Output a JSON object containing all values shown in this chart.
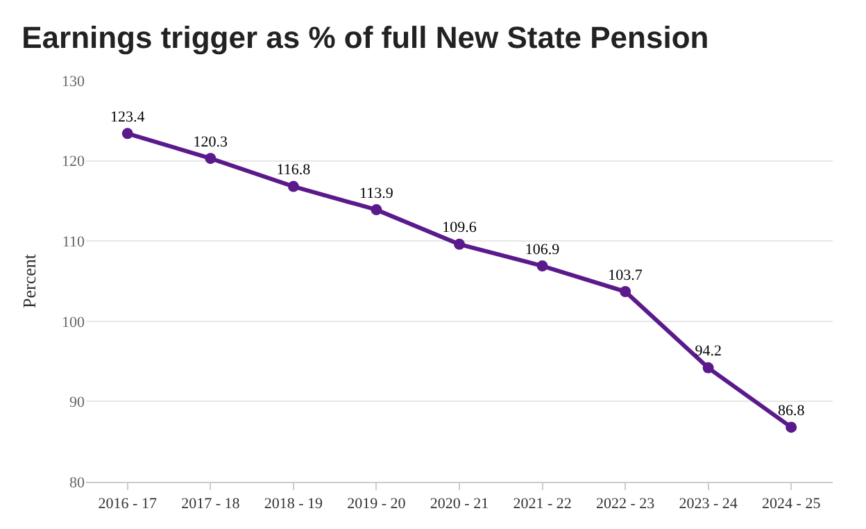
{
  "chart_data": {
    "type": "line",
    "title": "Earnings trigger as % of full New State Pension",
    "ylabel": "Percent",
    "categories": [
      "2016 - 17",
      "2017 - 18",
      "2018 - 19",
      "2019 - 20",
      "2020 - 21",
      "2021 - 22",
      "2022 - 23",
      "2023 - 24",
      "2024 - 25"
    ],
    "series": [
      {
        "color": "#5a1a8c",
        "values": [
          123.4,
          120.3,
          116.8,
          113.9,
          109.6,
          106.9,
          103.7,
          94.2,
          86.8
        ]
      }
    ],
    "ylim": [
      80,
      130
    ],
    "yticks": [
      80,
      90,
      100,
      110,
      120,
      130
    ],
    "grid": "y",
    "legend": false,
    "marker": "circle",
    "line_style": "solid",
    "data_labels": true
  }
}
